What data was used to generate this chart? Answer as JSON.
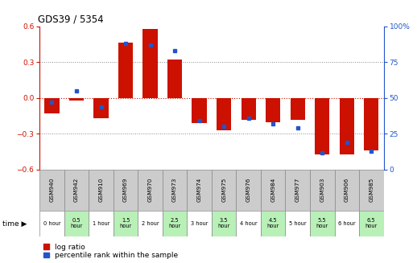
{
  "title": "GDS39 / 5354",
  "gsm_labels": [
    "GSM940",
    "GSM942",
    "GSM910",
    "GSM969",
    "GSM970",
    "GSM973",
    "GSM974",
    "GSM975",
    "GSM976",
    "GSM984",
    "GSM977",
    "GSM903",
    "GSM906",
    "GSM985"
  ],
  "time_labels": [
    "0 hour",
    "0.5\nhour",
    "1 hour",
    "1.5\nhour",
    "2 hour",
    "2.5\nhour",
    "3 hour",
    "3.5\nhour",
    "4 hour",
    "4.5\nhour",
    "5 hour",
    "5.5\nhour",
    "6 hour",
    "6.5\nhour"
  ],
  "time_bg": [
    "#ffffff",
    "#b8f0b8",
    "#ffffff",
    "#b8f0b8",
    "#ffffff",
    "#b8f0b8",
    "#ffffff",
    "#b8f0b8",
    "#ffffff",
    "#b8f0b8",
    "#ffffff",
    "#b8f0b8",
    "#ffffff",
    "#b8f0b8"
  ],
  "log_ratio": [
    -0.13,
    -0.02,
    -0.17,
    0.46,
    0.58,
    0.32,
    -0.21,
    -0.27,
    -0.18,
    -0.2,
    -0.18,
    -0.47,
    -0.47,
    -0.44
  ],
  "percentile": [
    47,
    55,
    44,
    88,
    87,
    83,
    34,
    30,
    36,
    32,
    29,
    12,
    19,
    13
  ],
  "ylim": [
    -0.6,
    0.6
  ],
  "yticks": [
    -0.6,
    -0.3,
    0.0,
    0.3,
    0.6
  ],
  "right_ylim": [
    0,
    100
  ],
  "right_yticks": [
    0,
    25,
    50,
    75,
    100
  ],
  "bar_color": "#cc1100",
  "dot_color": "#2255cc",
  "bar_width": 0.6,
  "gsm_bg": "#cccccc",
  "legend_labels": [
    "log ratio",
    "percentile rank within the sample"
  ]
}
